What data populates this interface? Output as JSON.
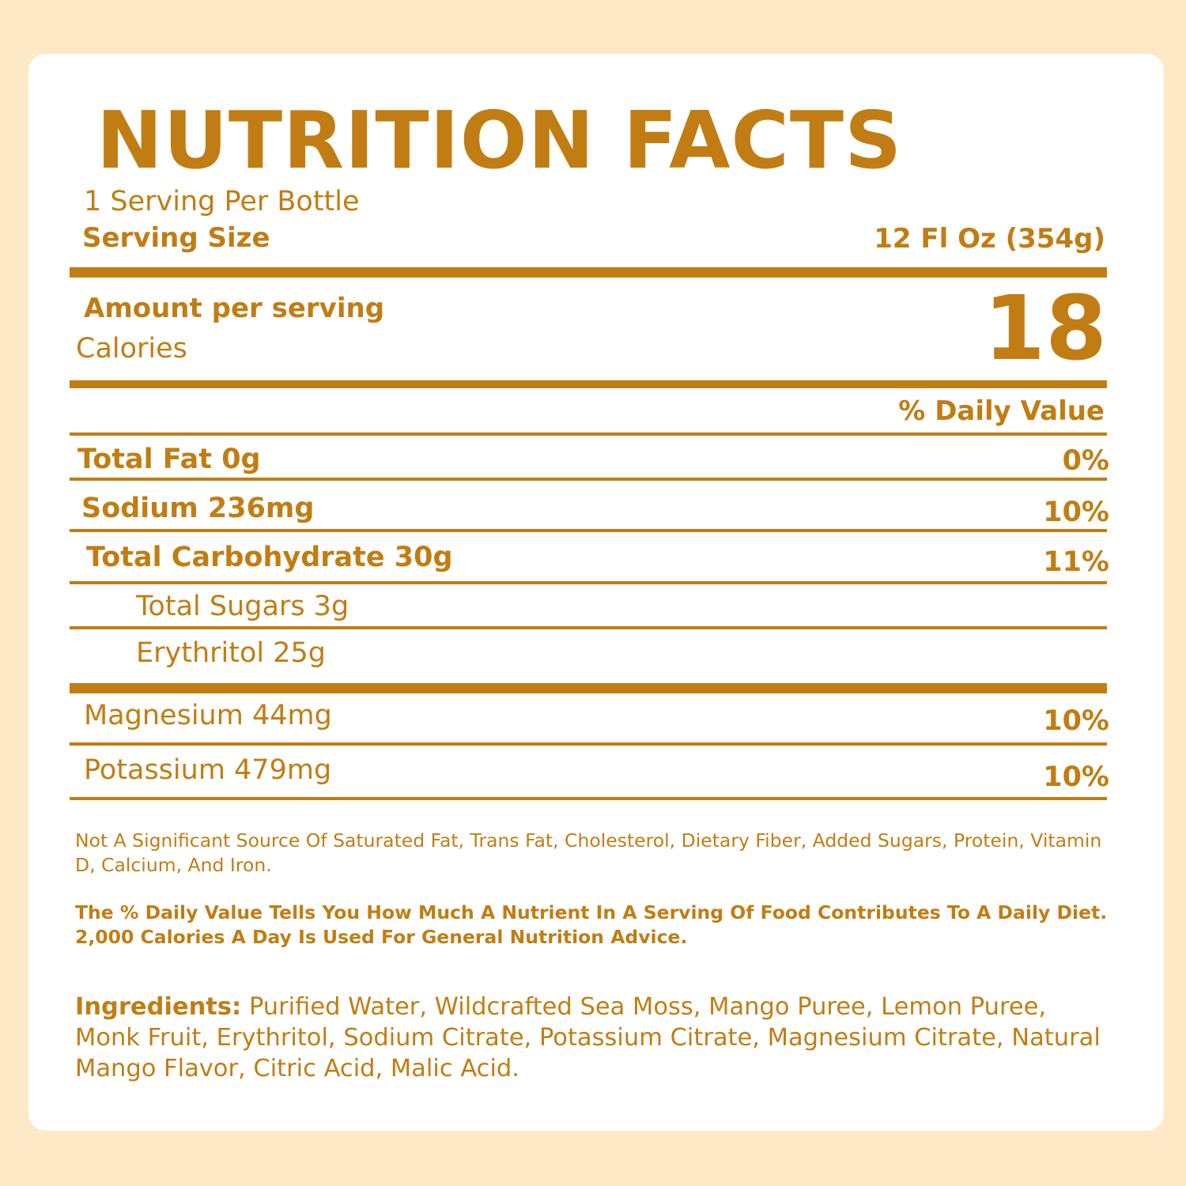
{
  "label": {
    "title": "NUTRITION FACTS",
    "servings_per": "1 Serving Per Bottle",
    "serving_size_label": "Serving Size",
    "serving_size_value": "12 Fl Oz (354g)",
    "amount_per_serving": "Amount per serving",
    "calories_label": "Calories",
    "calories_value": "18",
    "daily_value_header": "% Daily Value",
    "nutrients": [
      {
        "name": "Total Fat 0g",
        "dv": "0%"
      },
      {
        "name": "Sodium 236mg",
        "dv": "10%"
      },
      {
        "name": "Total Carbohydrate 30g",
        "dv": "11%"
      },
      {
        "name": "Total Sugars 3g",
        "dv": ""
      },
      {
        "name": "Erythritol 25g",
        "dv": ""
      }
    ],
    "minerals": [
      {
        "name": "Magnesium 44mg",
        "dv": "10%"
      },
      {
        "name": "Potassium 479mg",
        "dv": "10%"
      }
    ],
    "not_significant_note": "Not A Significant Source Of Saturated Fat, Trans Fat, Cholesterol, Dietary Fiber, Added Sugars, Protein, Vitamin D, Calcium, And Iron.",
    "daily_value_note": "The % Daily Value Tells You How Much A Nutrient In A Serving Of Food Contributes To A Daily Diet. 2,000 Calories A Day Is Used For General Nutrition Advice.",
    "ingredients_label": "Ingredients:",
    "ingredients_text": " Purified Water, Wildcrafted Sea Moss, Mango Puree, Lemon Puree, Monk Fruit, Erythritol, Sodium Citrate, Potassium Citrate, Magnesium Citrate, Natural Mango Flavor, Citric Acid, Malic Acid."
  },
  "colors": {
    "accent": "#c17d13",
    "background": "#fde9c6",
    "card": "#ffffff"
  }
}
